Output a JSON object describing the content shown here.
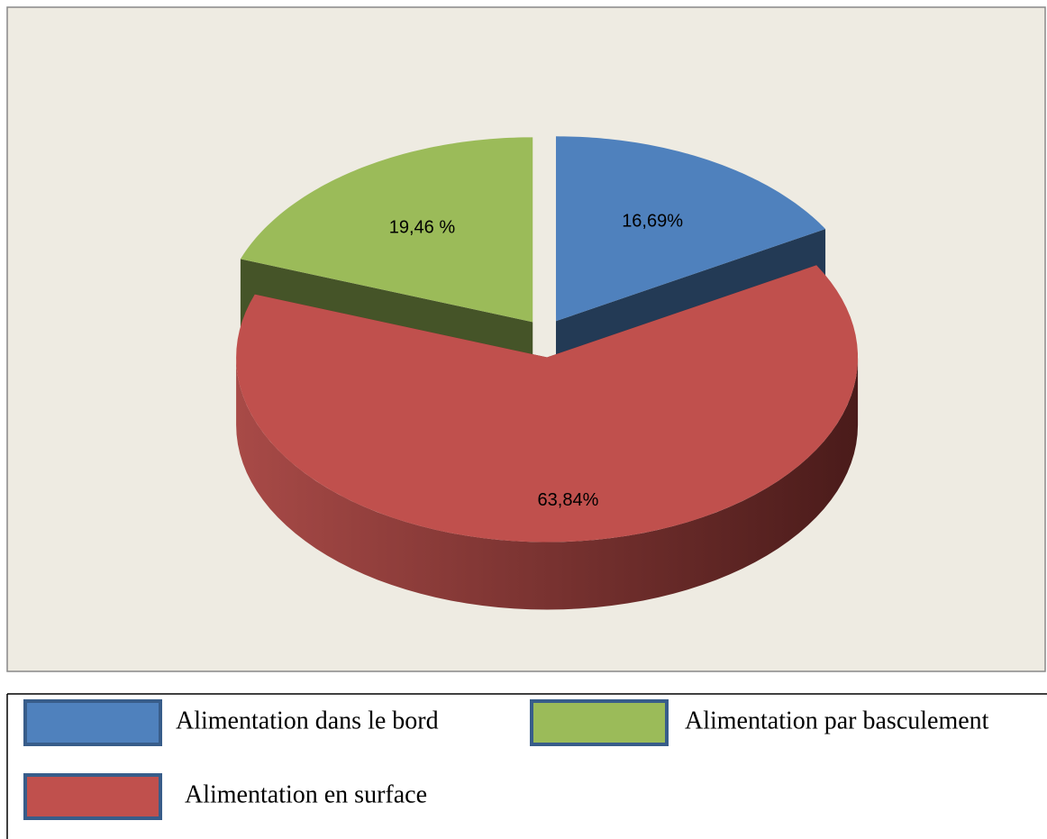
{
  "chart_data": {
    "type": "pie",
    "pie_3d": true,
    "categories": [
      "Alimentation dans le bord",
      "Alimentation en surface",
      "Alimentation par basculement"
    ],
    "values": [
      16.69,
      63.84,
      19.46
    ],
    "value_labels": [
      "16,69%",
      "63,84%",
      "19,46 %"
    ],
    "colors": [
      "#4f81bd",
      "#c0504d",
      "#9bbb59"
    ]
  }
}
